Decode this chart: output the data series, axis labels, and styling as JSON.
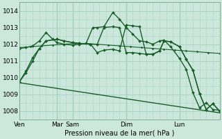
{
  "background_color": "#cce8dc",
  "grid_color": "#aad4c4",
  "line_color": "#1a5e2a",
  "xlabel": "Pression niveau de la mer( hPa )",
  "ylim": [
    1007.5,
    1014.5
  ],
  "yticks": [
    1008,
    1009,
    1010,
    1011,
    1012,
    1013,
    1014
  ],
  "day_labels": [
    "Ven",
    "Mar",
    "Sam",
    "Dim",
    "Lun"
  ],
  "day_positions": [
    0,
    17,
    24,
    48,
    72
  ],
  "xlim": [
    0,
    90
  ],
  "vlines": [
    17,
    24,
    48,
    72
  ],
  "lines": [
    {
      "x": [
        0,
        90
      ],
      "y": [
        1009.7,
        1007.9
      ],
      "marker": null,
      "linewidth": 1.0,
      "markersize": 0
    },
    {
      "x": [
        0,
        5,
        10,
        15,
        20,
        25,
        30,
        35,
        40,
        45,
        50,
        55,
        60,
        65,
        70,
        75,
        80,
        85,
        90
      ],
      "y": [
        1011.8,
        1011.85,
        1011.9,
        1011.95,
        1012.0,
        1012.05,
        1012.05,
        1012.0,
        1011.95,
        1011.9,
        1011.85,
        1011.8,
        1011.75,
        1011.7,
        1011.65,
        1011.6,
        1011.55,
        1011.5,
        1011.45
      ],
      "marker": "D",
      "linewidth": 0.8,
      "markersize": 1.5
    },
    {
      "x": [
        0,
        3,
        6,
        9,
        12,
        15,
        17,
        20,
        24,
        27,
        30,
        33,
        35,
        38,
        42,
        45,
        48,
        51,
        54,
        57,
        60,
        63,
        65,
        68,
        72,
        75,
        78,
        81,
        84,
        87,
        90
      ],
      "y": [
        1011.75,
        1011.8,
        1011.9,
        1012.2,
        1012.7,
        1012.3,
        1012.1,
        1012.0,
        1011.95,
        1012.0,
        1012.05,
        1013.0,
        1013.0,
        1013.05,
        1013.9,
        1013.5,
        1013.0,
        1012.6,
        1012.2,
        1012.15,
        1012.0,
        1012.2,
        1012.25,
        1011.85,
        1011.15,
        1010.5,
        1009.1,
        1008.2,
        1008.5,
        1008.1,
        1008.05
      ],
      "marker": "D",
      "linewidth": 1.0,
      "markersize": 2.0
    },
    {
      "x": [
        0,
        3,
        6,
        9,
        12,
        17,
        20,
        24,
        27,
        32,
        35,
        38,
        42,
        45,
        48,
        51,
        54,
        57,
        60,
        63,
        65,
        68,
        72,
        75,
        78,
        81,
        84,
        87,
        90
      ],
      "y": [
        1009.75,
        1010.4,
        1011.2,
        1011.75,
        1012.2,
        1012.3,
        1012.2,
        1012.1,
        1012.05,
        1012.0,
        1012.0,
        1013.0,
        1013.05,
        1013.0,
        1011.5,
        1011.5,
        1011.45,
        1011.4,
        1011.4,
        1011.6,
        1012.2,
        1012.15,
        1011.85,
        1011.1,
        1010.45,
        1009.05,
        1008.1,
        1008.45,
        1008.0
      ],
      "marker": "D",
      "linewidth": 1.0,
      "markersize": 2.0
    },
    {
      "x": [
        0,
        3,
        6,
        9,
        12,
        17,
        20,
        24,
        27,
        32,
        35,
        38,
        42,
        45,
        48,
        51,
        54,
        57,
        60,
        63,
        65,
        68,
        72,
        75,
        78,
        81,
        84,
        87,
        90
      ],
      "y": [
        1009.75,
        1010.3,
        1011.0,
        1011.75,
        1012.2,
        1012.3,
        1012.2,
        1012.1,
        1012.05,
        1012.0,
        1011.5,
        1011.65,
        1011.7,
        1011.6,
        1013.15,
        1013.1,
        1013.05,
        1011.4,
        1011.4,
        1011.6,
        1012.2,
        1012.15,
        1011.85,
        1011.1,
        1010.45,
        1009.05,
        1008.1,
        1008.45,
        1008.0
      ],
      "marker": "D",
      "linewidth": 1.0,
      "markersize": 2.0
    }
  ]
}
